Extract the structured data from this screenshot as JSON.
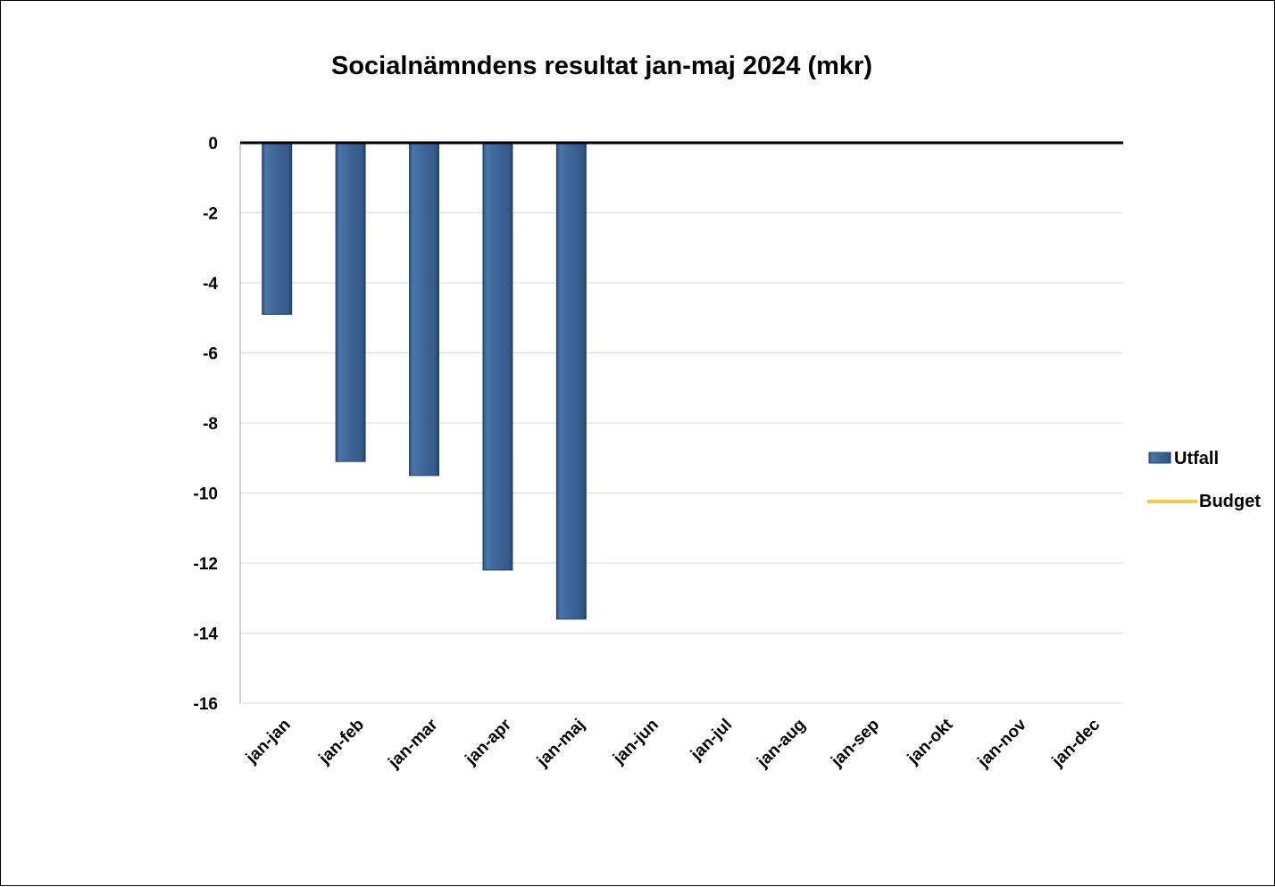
{
  "chart_data": {
    "type": "bar",
    "title": "Socialnämndens resultat jan-maj 2024 (mkr)",
    "xlabel": "",
    "ylabel": "",
    "categories": [
      "jan-jan",
      "jan-feb",
      "jan-mar",
      "jan-apr",
      "jan-maj",
      "jan-jun",
      "jan-jul",
      "jan-aug",
      "jan-sep",
      "jan-okt",
      "jan-nov",
      "jan-dec"
    ],
    "series": [
      {
        "name": "Utfall",
        "type": "bar",
        "color": "#3d6496",
        "values": [
          -4.9,
          -9.1,
          -9.5,
          -12.2,
          -13.6,
          null,
          null,
          null,
          null,
          null,
          null,
          null
        ]
      },
      {
        "name": "Budget",
        "type": "line",
        "color": "#f5c842",
        "values": [
          0,
          0,
          0,
          0,
          0,
          0,
          0,
          0,
          0,
          0,
          0,
          0
        ]
      }
    ],
    "ylim": [
      -16,
      0
    ],
    "yticks": [
      0,
      -2,
      -4,
      -6,
      -8,
      -10,
      -12,
      -14,
      -16
    ],
    "grid": true,
    "legend_position": "right"
  }
}
